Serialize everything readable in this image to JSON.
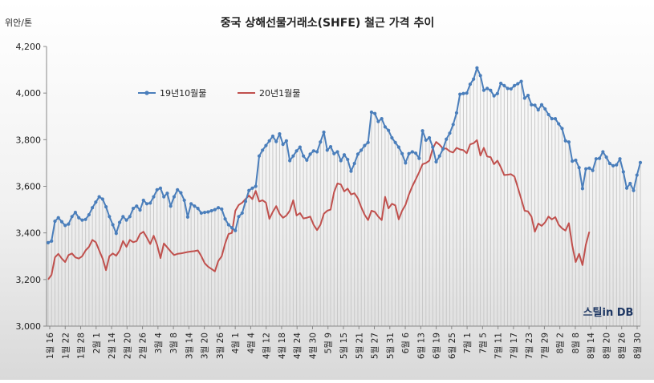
{
  "chart_data": {
    "type": "line",
    "title": "중국 상해선물거래소(SHFE)  철근 가격 추이",
    "unit_label": "위안/톤",
    "ylim": [
      3000,
      4200
    ],
    "yticks": [
      "3,000",
      "3,200",
      "3,400",
      "3,600",
      "3,800",
      "4,000",
      "4,200"
    ],
    "ytick_values": [
      3000,
      3200,
      3400,
      3600,
      3800,
      4000,
      4200
    ],
    "grid": false,
    "legend_position": "top-left",
    "watermark": "스틸in DB",
    "x_tick_labels": [
      {
        "day": "16",
        "month": "1월"
      },
      {
        "day": "22",
        "month": "1월"
      },
      {
        "day": "28",
        "month": "1월"
      },
      {
        "day": "1",
        "month": "2월"
      },
      {
        "day": "14",
        "month": "2월"
      },
      {
        "day": "20",
        "month": "2월"
      },
      {
        "day": "26",
        "month": "2월"
      },
      {
        "day": "4",
        "month": "3월"
      },
      {
        "day": "8",
        "month": "3월"
      },
      {
        "day": "14",
        "month": "3월"
      },
      {
        "day": "20",
        "month": "3월"
      },
      {
        "day": "26",
        "month": "3월"
      },
      {
        "day": "1",
        "month": "4월"
      },
      {
        "day": "4",
        "month": "4월"
      },
      {
        "day": "12",
        "month": "4월"
      },
      {
        "day": "18",
        "month": "4월"
      },
      {
        "day": "24",
        "month": "4월"
      },
      {
        "day": "30",
        "month": "4월"
      },
      {
        "day": "9",
        "month": "5월"
      },
      {
        "day": "15",
        "month": "5월"
      },
      {
        "day": "21",
        "month": "5월"
      },
      {
        "day": "27",
        "month": "5월"
      },
      {
        "day": "31",
        "month": "5월"
      },
      {
        "day": "6",
        "month": "6월"
      },
      {
        "day": "13",
        "month": "6월"
      },
      {
        "day": "19",
        "month": "6월"
      },
      {
        "day": "25",
        "month": "6월"
      },
      {
        "day": "1",
        "month": "7월"
      },
      {
        "day": "5",
        "month": "7월"
      },
      {
        "day": "11",
        "month": "7월"
      },
      {
        "day": "17",
        "month": "7월"
      },
      {
        "day": "23",
        "month": "7월"
      },
      {
        "day": "29",
        "month": "7월"
      },
      {
        "day": "2",
        "month": "8월"
      },
      {
        "day": "8",
        "month": "8월"
      },
      {
        "day": "14",
        "month": "8월"
      },
      {
        "day": "20",
        "month": "8월"
      },
      {
        "day": "26",
        "month": "8월"
      },
      {
        "day": "30",
        "month": "8월"
      }
    ],
    "series": [
      {
        "name": "19년10월물",
        "color": "#4a7ebb",
        "markers": true,
        "values": [
          3358,
          3365,
          3450,
          3465,
          3448,
          3432,
          3438,
          3470,
          3488,
          3465,
          3455,
          3458,
          3478,
          3508,
          3532,
          3555,
          3545,
          3512,
          3470,
          3435,
          3398,
          3445,
          3470,
          3455,
          3470,
          3505,
          3515,
          3498,
          3540,
          3525,
          3528,
          3555,
          3585,
          3592,
          3555,
          3570,
          3515,
          3555,
          3585,
          3572,
          3540,
          3468,
          3525,
          3515,
          3505,
          3485,
          3488,
          3490,
          3495,
          3500,
          3508,
          3502,
          3460,
          3435,
          3422,
          3410,
          3470,
          3485,
          3535,
          3582,
          3592,
          3600,
          3730,
          3755,
          3775,
          3795,
          3815,
          3792,
          3825,
          3780,
          3795,
          3710,
          3730,
          3752,
          3768,
          3730,
          3712,
          3738,
          3752,
          3748,
          3790,
          3832,
          3755,
          3770,
          3740,
          3748,
          3710,
          3735,
          3715,
          3665,
          3698,
          3738,
          3755,
          3775,
          3788,
          3918,
          3912,
          3878,
          3890,
          3855,
          3840,
          3808,
          3788,
          3768,
          3740,
          3700,
          3740,
          3748,
          3742,
          3720,
          3838,
          3798,
          3808,
          3768,
          3705,
          3730,
          3760,
          3802,
          3828,
          3865,
          3915,
          3995,
          3998,
          4000,
          4038,
          4060,
          4108,
          4075,
          4012,
          4020,
          4012,
          3988,
          3998,
          4042,
          4032,
          4020,
          4018,
          4032,
          4040,
          4050,
          3978,
          3990,
          3950,
          3948,
          3928,
          3950,
          3932,
          3908,
          3890,
          3890,
          3868,
          3848,
          3795,
          3790,
          3708,
          3712,
          3680,
          3590,
          3675,
          3678,
          3668,
          3718,
          3720,
          3748,
          3725,
          3698,
          3688,
          3692,
          3718,
          3662,
          3592,
          3612,
          3582,
          3648,
          3702
        ]
      },
      {
        "name": "20년1월물",
        "color": "#c0504d",
        "markers": false,
        "values": [
          3200,
          3220,
          3295,
          3310,
          3290,
          3275,
          3305,
          3312,
          3295,
          3290,
          3300,
          3325,
          3340,
          3370,
          3360,
          3325,
          3290,
          3240,
          3300,
          3312,
          3302,
          3325,
          3365,
          3340,
          3370,
          3360,
          3365,
          3395,
          3405,
          3380,
          3352,
          3388,
          3350,
          3292,
          3355,
          3338,
          3320,
          3305,
          3310,
          3312,
          3315,
          3318,
          3320,
          3322,
          3325,
          3300,
          3270,
          3255,
          3245,
          3235,
          3280,
          3300,
          3355,
          3395,
          3400,
          3495,
          3520,
          3530,
          3545,
          3560,
          3545,
          3580,
          3535,
          3540,
          3530,
          3460,
          3490,
          3515,
          3482,
          3465,
          3475,
          3495,
          3540,
          3475,
          3485,
          3462,
          3465,
          3470,
          3435,
          3412,
          3435,
          3482,
          3495,
          3500,
          3575,
          3612,
          3608,
          3578,
          3590,
          3565,
          3570,
          3548,
          3510,
          3478,
          3455,
          3495,
          3490,
          3470,
          3455,
          3555,
          3505,
          3525,
          3518,
          3458,
          3495,
          3520,
          3565,
          3600,
          3630,
          3660,
          3695,
          3700,
          3710,
          3762,
          3790,
          3778,
          3762,
          3762,
          3750,
          3745,
          3765,
          3758,
          3755,
          3742,
          3780,
          3785,
          3798,
          3732,
          3765,
          3728,
          3725,
          3695,
          3710,
          3682,
          3648,
          3650,
          3652,
          3642,
          3595,
          3545,
          3495,
          3492,
          3470,
          3405,
          3440,
          3430,
          3445,
          3470,
          3458,
          3468,
          3435,
          3420,
          3410,
          3442,
          3345,
          3275,
          3310,
          3262,
          3350,
          3405
        ]
      }
    ]
  }
}
